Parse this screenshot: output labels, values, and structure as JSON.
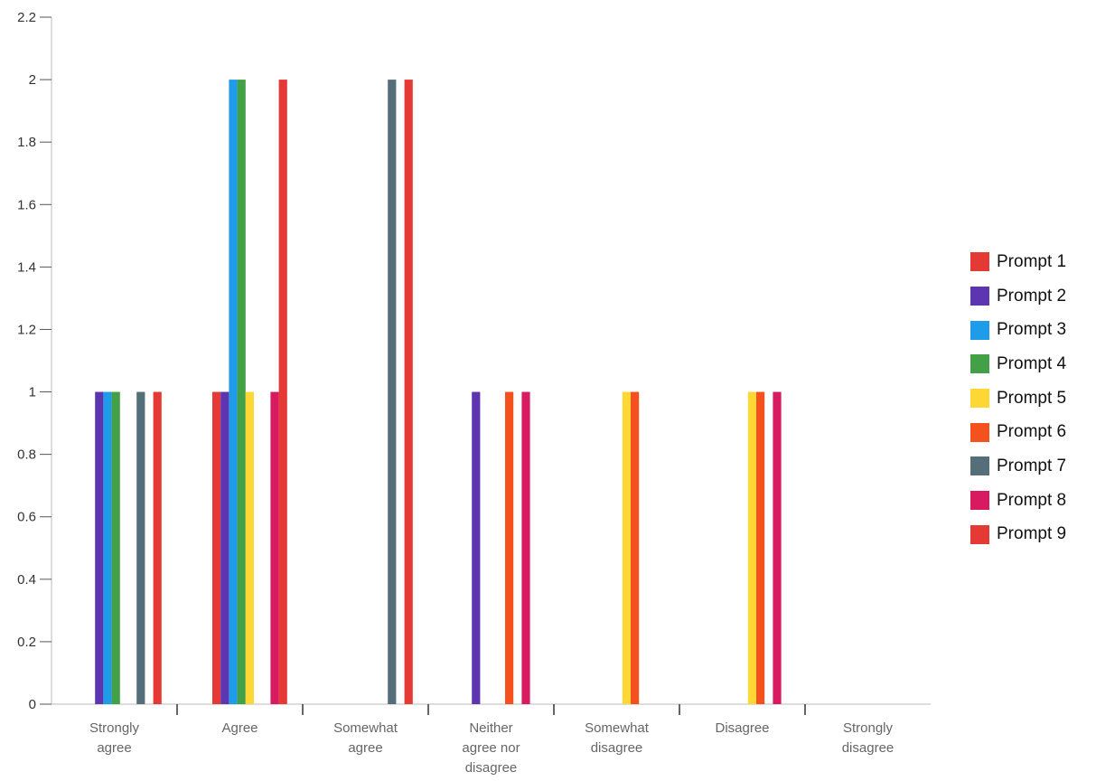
{
  "chart_data": {
    "type": "bar",
    "categories": [
      [
        "Strongly",
        "agree"
      ],
      [
        "Agree"
      ],
      [
        "Somewhat",
        "agree"
      ],
      [
        "Neither",
        "agree nor",
        "disagree"
      ],
      [
        "Somewhat",
        "disagree"
      ],
      [
        "Disagree"
      ],
      [
        "Strongly",
        "disagree"
      ]
    ],
    "ylim": [
      0,
      2.2
    ],
    "yticks": [
      "0",
      "0.2",
      "0.4",
      "0.6",
      "0.8",
      "1",
      "1.2",
      "1.4",
      "1.6",
      "1.8",
      "2",
      "2.2"
    ],
    "legend_position": "right",
    "series": [
      {
        "name": "Prompt 1",
        "color": "#E53935",
        "values": [
          0,
          1,
          0,
          0,
          0,
          0,
          0
        ]
      },
      {
        "name": "Prompt 2",
        "color": "#5E35B1",
        "values": [
          1,
          1,
          0,
          1,
          0,
          0,
          0
        ]
      },
      {
        "name": "Prompt 3",
        "color": "#1E9BE9",
        "values": [
          1,
          2,
          0,
          0,
          0,
          0,
          0
        ]
      },
      {
        "name": "Prompt 4",
        "color": "#43A047",
        "values": [
          1,
          2,
          0,
          0,
          0,
          0,
          0
        ]
      },
      {
        "name": "Prompt 5",
        "color": "#FDD835",
        "values": [
          0,
          1,
          0,
          0,
          1,
          1,
          0
        ]
      },
      {
        "name": "Prompt 6",
        "color": "#F4511E",
        "values": [
          0,
          0,
          0,
          1,
          1,
          1,
          0
        ]
      },
      {
        "name": "Prompt 7",
        "color": "#546E7A",
        "values": [
          1,
          0,
          2,
          0,
          0,
          0,
          0
        ]
      },
      {
        "name": "Prompt 8",
        "color": "#D81B60",
        "values": [
          0,
          1,
          0,
          1,
          0,
          1,
          0
        ]
      },
      {
        "name": "Prompt 9",
        "color": "#E53935",
        "values": [
          1,
          2,
          2,
          0,
          0,
          0,
          0
        ]
      }
    ]
  }
}
